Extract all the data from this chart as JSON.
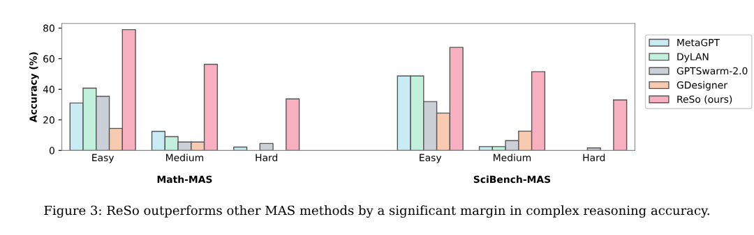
{
  "chart_data": {
    "type": "bar",
    "ylabel": "Accuracy (%)",
    "categories": [
      "Easy",
      "Medium",
      "Hard",
      null,
      "Easy",
      "Medium",
      "Hard"
    ],
    "series": [
      {
        "name": "MetaGPT",
        "color": "#c9ecf4",
        "values": [
          31,
          12.4,
          2.2,
          null,
          48.7,
          2.5,
          null
        ]
      },
      {
        "name": "DyLAN",
        "color": "#c1f0dc",
        "values": [
          40.7,
          9,
          null,
          null,
          48.7,
          2.5,
          null
        ]
      },
      {
        "name": "GPTSwarm-2.0",
        "color": "#cbd0d8",
        "values": [
          35.4,
          5.5,
          4.5,
          null,
          31.9,
          6.4,
          1.6
        ]
      },
      {
        "name": "GDesigner",
        "color": "#f8cbb0",
        "values": [
          14.4,
          5.5,
          null,
          null,
          24.4,
          12.6,
          null
        ]
      },
      {
        "name": "ReSo (ours)",
        "color": "#f8b0c0",
        "values": [
          79,
          56.3,
          33.7,
          null,
          67.4,
          51.5,
          33
        ]
      }
    ],
    "ylim": [
      0,
      83
    ],
    "yticks": [
      0,
      20,
      40,
      60,
      80
    ],
    "grid": false,
    "legend": "right",
    "annotations": [
      "Math-MAS",
      "SciBench-MAS",
      "Figure 3: ReSo outperforms other MAS methods by a significant margin in complex reasoning accuracy."
    ]
  }
}
